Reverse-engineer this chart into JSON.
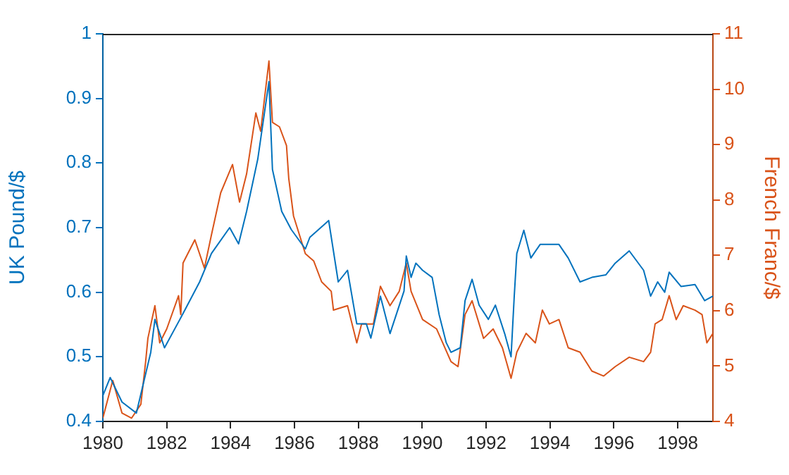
{
  "chart_data": {
    "type": "line",
    "ylabel": "UK Pound/$",
    "y2label": "French Franc/$",
    "xlim": [
      1980,
      1999.1
    ],
    "xticks": [
      1980,
      1982,
      1984,
      1986,
      1988,
      1990,
      1992,
      1994,
      1996,
      1998
    ],
    "ylim": [
      0.4,
      1
    ],
    "yticks": [
      0.4,
      0.5,
      0.6,
      0.7,
      0.8,
      0.9,
      {
        "value": 1,
        "label": "1"
      }
    ],
    "y2lim": [
      4,
      11
    ],
    "y2ticks": [
      4,
      5,
      6,
      7,
      8,
      9,
      10,
      11
    ],
    "grid": false,
    "legend": false,
    "marker": "none",
    "line_style": "solid",
    "series": [
      {
        "color": "#0072bd",
        "x": [
          1980.0,
          1980.23,
          1980.6,
          1981.05,
          1981.5,
          1981.63,
          1981.93,
          1982.5,
          1983.03,
          1983.4,
          1983.97,
          1984.25,
          1984.5,
          1984.85,
          1985.2,
          1985.31,
          1985.6,
          1985.9,
          1986.34,
          1986.48,
          1987.07,
          1987.37,
          1987.66,
          1987.95,
          1988.25,
          1988.39,
          1988.69,
          1988.99,
          1989.43,
          1989.5,
          1989.65,
          1989.8,
          1990.01,
          1990.31,
          1990.53,
          1990.75,
          1990.9,
          1991.19,
          1991.34,
          1991.56,
          1991.78,
          1992.07,
          1992.29,
          1992.58,
          1992.78,
          1992.88,
          1992.96,
          1993.18,
          1993.4,
          1993.69,
          1993.98,
          1994.28,
          1994.57,
          1994.94,
          1995.31,
          1995.75,
          1996.04,
          1996.48,
          1996.93,
          1997.15,
          1997.37,
          1997.59,
          1997.73,
          1998.1,
          1998.54,
          1998.84,
          1999.1
        ],
        "values": [
          0.44,
          0.468,
          0.43,
          0.413,
          0.507,
          0.558,
          0.514,
          0.566,
          0.616,
          0.66,
          0.7,
          0.675,
          0.725,
          0.806,
          0.926,
          0.79,
          0.725,
          0.697,
          0.667,
          0.685,
          0.711,
          0.616,
          0.634,
          0.551,
          0.551,
          0.529,
          0.594,
          0.536,
          0.602,
          0.656,
          0.623,
          0.645,
          0.634,
          0.623,
          0.565,
          0.522,
          0.507,
          0.514,
          0.587,
          0.62,
          0.58,
          0.558,
          0.58,
          0.536,
          0.5,
          0.594,
          0.66,
          0.696,
          0.653,
          0.674,
          0.674,
          0.674,
          0.653,
          0.616,
          0.623,
          0.627,
          0.645,
          0.664,
          0.634,
          0.594,
          0.616,
          0.6,
          0.631,
          0.609,
          0.612,
          0.587,
          0.594
        ]
      },
      {
        "color": "#d95319",
        "axis": "y2",
        "x": [
          1980.0,
          1980.31,
          1980.6,
          1980.9,
          1981.19,
          1981.34,
          1981.41,
          1981.63,
          1981.78,
          1982.0,
          1982.37,
          1982.44,
          1982.51,
          1982.88,
          1983.18,
          1983.4,
          1983.69,
          1984.06,
          1984.28,
          1984.5,
          1984.79,
          1984.94,
          1985.2,
          1985.31,
          1985.53,
          1985.75,
          1985.82,
          1985.97,
          1986.34,
          1986.6,
          1986.85,
          1987.15,
          1987.22,
          1987.66,
          1987.95,
          1988.1,
          1988.47,
          1988.69,
          1988.99,
          1989.28,
          1989.5,
          1989.65,
          1990.01,
          1990.45,
          1990.9,
          1991.12,
          1991.34,
          1991.56,
          1991.92,
          1992.22,
          1992.51,
          1992.78,
          1992.96,
          1993.25,
          1993.54,
          1993.76,
          1993.98,
          1994.28,
          1994.57,
          1994.94,
          1995.31,
          1995.68,
          1996.04,
          1996.48,
          1996.93,
          1997.15,
          1997.29,
          1997.51,
          1997.73,
          1997.95,
          1998.17,
          1998.54,
          1998.76,
          1998.91,
          1999.1
        ],
        "values": [
          4.06,
          4.74,
          4.15,
          4.06,
          4.31,
          5.08,
          5.5,
          6.09,
          5.42,
          5.67,
          6.27,
          5.93,
          6.86,
          7.28,
          6.77,
          7.37,
          8.13,
          8.64,
          7.96,
          8.47,
          9.57,
          9.24,
          10.51,
          9.4,
          9.32,
          8.98,
          8.39,
          7.71,
          7.03,
          6.9,
          6.52,
          6.35,
          6.01,
          6.09,
          5.42,
          5.76,
          5.76,
          6.44,
          6.09,
          6.35,
          6.86,
          6.35,
          5.84,
          5.67,
          5.08,
          4.99,
          5.93,
          6.18,
          5.5,
          5.67,
          5.33,
          4.78,
          5.25,
          5.59,
          5.42,
          6.01,
          5.76,
          5.84,
          5.33,
          5.25,
          4.91,
          4.82,
          4.99,
          5.16,
          5.08,
          5.25,
          5.76,
          5.84,
          6.27,
          5.84,
          6.09,
          6.01,
          5.93,
          5.42,
          5.59
        ]
      }
    ]
  }
}
